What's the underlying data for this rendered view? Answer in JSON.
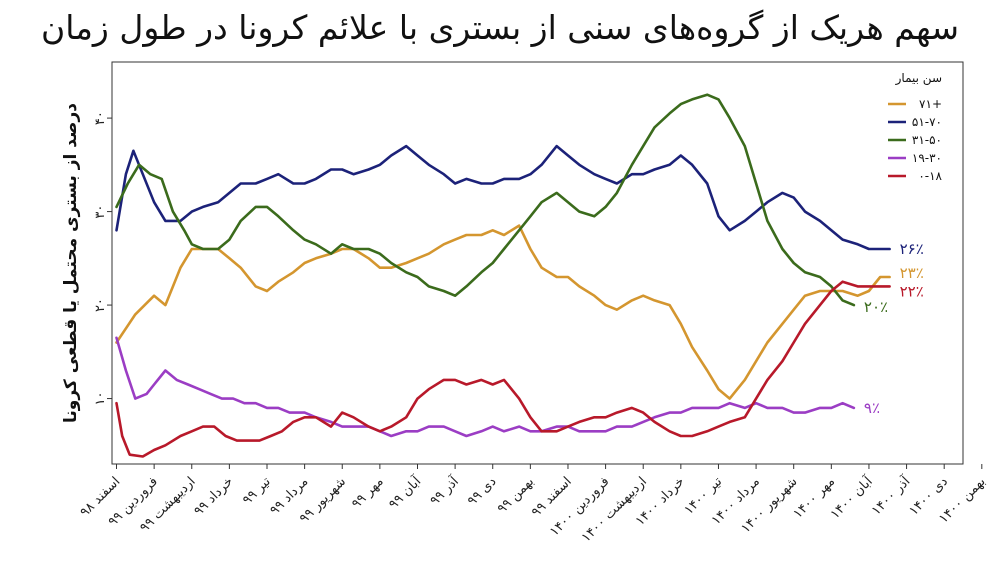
{
  "chart_data": {
    "type": "line",
    "title": "سهم هریک از گروه‌های سنی از بستری با علائم کرونا در طول زمان",
    "ylabel": "درصد از بستری محتمل یا قطعی کرونا",
    "ylim": [
      3,
      46
    ],
    "yticks": [
      10,
      20,
      30,
      40
    ],
    "ytick_labels": [
      "۱۰",
      "۲۰",
      "۳۰",
      "۴۰"
    ],
    "x_range": [
      -0.12,
      22.5
    ],
    "grid": false,
    "legend_position": "top-right",
    "legend_title": "سن بیمار",
    "categories": [
      "اسفند ۹۸",
      "فروردین ۹۹",
      "اردیبهشت ۹۹",
      "خرداد ۹۹",
      "تیر ۹۹",
      "مرداد ۹۹",
      "شهریور ۹۹",
      "مهر ۹۹",
      "آبان ۹۹",
      "آذر ۹۹",
      "دی ۹۹",
      "بهمن ۹۹",
      "اسفند ۹۹",
      "فروردین ۱۴۰۰",
      "اردیبهشت ۱۴۰۰",
      "خرداد ۱۴۰۰",
      "تیر ۱۴۰۰",
      "مرداد ۱۴۰۰",
      "شهریور ۱۴۰۰",
      "مهر ۱۴۰۰",
      "آبان ۱۴۰۰",
      "آذر ۱۴۰۰",
      "دی ۱۴۰۰",
      "بهمن ۱۴۰۰"
    ],
    "series": [
      {
        "name": "۷۱+",
        "color": "#d4962f",
        "end_label": "۲۳٪",
        "points": [
          [
            0,
            16
          ],
          [
            0.5,
            19
          ],
          [
            1,
            21
          ],
          [
            1.3,
            20
          ],
          [
            1.7,
            24
          ],
          [
            2,
            26
          ],
          [
            2.3,
            26
          ],
          [
            2.7,
            26
          ],
          [
            3,
            25
          ],
          [
            3.3,
            24
          ],
          [
            3.7,
            22
          ],
          [
            4,
            21.5
          ],
          [
            4.3,
            22.5
          ],
          [
            4.7,
            23.5
          ],
          [
            5,
            24.5
          ],
          [
            5.3,
            25
          ],
          [
            5.7,
            25.5
          ],
          [
            6,
            26
          ],
          [
            6.3,
            26
          ],
          [
            6.7,
            25
          ],
          [
            7,
            24
          ],
          [
            7.3,
            24
          ],
          [
            7.7,
            24.5
          ],
          [
            8,
            25
          ],
          [
            8.3,
            25.5
          ],
          [
            8.7,
            26.5
          ],
          [
            9,
            27
          ],
          [
            9.3,
            27.5
          ],
          [
            9.7,
            27.5
          ],
          [
            10,
            28
          ],
          [
            10.3,
            27.5
          ],
          [
            10.7,
            28.5
          ],
          [
            11,
            26
          ],
          [
            11.3,
            24
          ],
          [
            11.7,
            23
          ],
          [
            12,
            23
          ],
          [
            12.3,
            22
          ],
          [
            12.7,
            21
          ],
          [
            13,
            20
          ],
          [
            13.3,
            19.5
          ],
          [
            13.7,
            20.5
          ],
          [
            14,
            21
          ],
          [
            14.3,
            20.5
          ],
          [
            14.7,
            20
          ],
          [
            15,
            18
          ],
          [
            15.3,
            15.5
          ],
          [
            15.7,
            13
          ],
          [
            16,
            11
          ],
          [
            16.3,
            10
          ],
          [
            16.7,
            12
          ],
          [
            17,
            14
          ],
          [
            17.3,
            16
          ],
          [
            17.7,
            18
          ],
          [
            18,
            19.5
          ],
          [
            18.3,
            21
          ],
          [
            18.7,
            21.5
          ],
          [
            19,
            21.5
          ],
          [
            19.3,
            21.5
          ],
          [
            19.7,
            21
          ],
          [
            20,
            21.5
          ],
          [
            20.3,
            23
          ],
          [
            20.55,
            23
          ]
        ]
      },
      {
        "name": "۵۱-۷۰",
        "color": "#1c2279",
        "end_label": "۲۶٪",
        "points": [
          [
            0,
            28
          ],
          [
            0.25,
            34
          ],
          [
            0.45,
            36.5
          ],
          [
            0.7,
            34
          ],
          [
            1,
            31
          ],
          [
            1.3,
            29
          ],
          [
            1.7,
            29
          ],
          [
            2,
            30
          ],
          [
            2.3,
            30.5
          ],
          [
            2.7,
            31
          ],
          [
            3,
            32
          ],
          [
            3.3,
            33
          ],
          [
            3.7,
            33
          ],
          [
            4,
            33.5
          ],
          [
            4.3,
            34
          ],
          [
            4.7,
            33
          ],
          [
            5,
            33
          ],
          [
            5.3,
            33.5
          ],
          [
            5.7,
            34.5
          ],
          [
            6,
            34.5
          ],
          [
            6.3,
            34
          ],
          [
            6.7,
            34.5
          ],
          [
            7,
            35
          ],
          [
            7.3,
            36
          ],
          [
            7.7,
            37
          ],
          [
            8,
            36
          ],
          [
            8.3,
            35
          ],
          [
            8.7,
            34
          ],
          [
            9,
            33
          ],
          [
            9.3,
            33.5
          ],
          [
            9.7,
            33
          ],
          [
            10,
            33
          ],
          [
            10.3,
            33.5
          ],
          [
            10.7,
            33.5
          ],
          [
            11,
            34
          ],
          [
            11.3,
            35
          ],
          [
            11.7,
            37
          ],
          [
            12,
            36
          ],
          [
            12.3,
            35
          ],
          [
            12.7,
            34
          ],
          [
            13,
            33.5
          ],
          [
            13.3,
            33
          ],
          [
            13.7,
            34
          ],
          [
            14,
            34
          ],
          [
            14.3,
            34.5
          ],
          [
            14.7,
            35
          ],
          [
            15,
            36
          ],
          [
            15.3,
            35
          ],
          [
            15.7,
            33
          ],
          [
            16,
            29.5
          ],
          [
            16.3,
            28
          ],
          [
            16.7,
            29
          ],
          [
            17,
            30
          ],
          [
            17.3,
            31
          ],
          [
            17.7,
            32
          ],
          [
            18,
            31.5
          ],
          [
            18.3,
            30
          ],
          [
            18.7,
            29
          ],
          [
            19,
            28
          ],
          [
            19.3,
            27
          ],
          [
            19.7,
            26.5
          ],
          [
            20,
            26
          ],
          [
            20.3,
            26
          ],
          [
            20.55,
            26
          ]
        ]
      },
      {
        "name": "۳۱-۵۰",
        "color": "#3b6b1c",
        "end_label": "۲۰٪",
        "points": [
          [
            0,
            30.5
          ],
          [
            0.3,
            33
          ],
          [
            0.6,
            35
          ],
          [
            0.9,
            34
          ],
          [
            1.2,
            33.5
          ],
          [
            1.5,
            30
          ],
          [
            1.8,
            28
          ],
          [
            2,
            26.5
          ],
          [
            2.3,
            26
          ],
          [
            2.7,
            26
          ],
          [
            3,
            27
          ],
          [
            3.3,
            29
          ],
          [
            3.7,
            30.5
          ],
          [
            4,
            30.5
          ],
          [
            4.3,
            29.5
          ],
          [
            4.7,
            28
          ],
          [
            5,
            27
          ],
          [
            5.3,
            26.5
          ],
          [
            5.7,
            25.5
          ],
          [
            6,
            26.5
          ],
          [
            6.3,
            26
          ],
          [
            6.7,
            26
          ],
          [
            7,
            25.5
          ],
          [
            7.3,
            24.5
          ],
          [
            7.7,
            23.5
          ],
          [
            8,
            23
          ],
          [
            8.3,
            22
          ],
          [
            8.7,
            21.5
          ],
          [
            9,
            21
          ],
          [
            9.3,
            22
          ],
          [
            9.7,
            23.5
          ],
          [
            10,
            24.5
          ],
          [
            10.3,
            26
          ],
          [
            10.7,
            28
          ],
          [
            11,
            29.5
          ],
          [
            11.3,
            31
          ],
          [
            11.7,
            32
          ],
          [
            12,
            31
          ],
          [
            12.3,
            30
          ],
          [
            12.7,
            29.5
          ],
          [
            13,
            30.5
          ],
          [
            13.3,
            32
          ],
          [
            13.7,
            35
          ],
          [
            14,
            37
          ],
          [
            14.3,
            39
          ],
          [
            14.7,
            40.5
          ],
          [
            15,
            41.5
          ],
          [
            15.3,
            42
          ],
          [
            15.7,
            42.5
          ],
          [
            16,
            42
          ],
          [
            16.3,
            40
          ],
          [
            16.7,
            37
          ],
          [
            17,
            33
          ],
          [
            17.3,
            29
          ],
          [
            17.7,
            26
          ],
          [
            18,
            24.5
          ],
          [
            18.3,
            23.5
          ],
          [
            18.7,
            23
          ],
          [
            19,
            22
          ],
          [
            19.3,
            20.5
          ],
          [
            19.6,
            20
          ]
        ]
      },
      {
        "name": "۱۹-۳۰",
        "color": "#9b3dc4",
        "end_label": "۹٪",
        "points": [
          [
            0,
            16.5
          ],
          [
            0.25,
            13
          ],
          [
            0.5,
            10
          ],
          [
            0.8,
            10.5
          ],
          [
            1,
            11.5
          ],
          [
            1.3,
            13
          ],
          [
            1.6,
            12
          ],
          [
            1.9,
            11.5
          ],
          [
            2.2,
            11
          ],
          [
            2.5,
            10.5
          ],
          [
            2.8,
            10
          ],
          [
            3.1,
            10
          ],
          [
            3.4,
            9.5
          ],
          [
            3.7,
            9.5
          ],
          [
            4,
            9
          ],
          [
            4.3,
            9
          ],
          [
            4.6,
            8.5
          ],
          [
            5,
            8.5
          ],
          [
            5.3,
            8
          ],
          [
            5.7,
            7.5
          ],
          [
            6,
            7
          ],
          [
            6.3,
            7
          ],
          [
            6.7,
            7
          ],
          [
            7,
            6.5
          ],
          [
            7.3,
            6
          ],
          [
            7.7,
            6.5
          ],
          [
            8,
            6.5
          ],
          [
            8.3,
            7
          ],
          [
            8.7,
            7
          ],
          [
            9,
            6.5
          ],
          [
            9.3,
            6
          ],
          [
            9.7,
            6.5
          ],
          [
            10,
            7
          ],
          [
            10.3,
            6.5
          ],
          [
            10.7,
            7
          ],
          [
            11,
            6.5
          ],
          [
            11.3,
            6.5
          ],
          [
            11.7,
            7
          ],
          [
            12,
            7
          ],
          [
            12.3,
            6.5
          ],
          [
            12.7,
            6.5
          ],
          [
            13,
            6.5
          ],
          [
            13.3,
            7
          ],
          [
            13.7,
            7
          ],
          [
            14,
            7.5
          ],
          [
            14.3,
            8
          ],
          [
            14.7,
            8.5
          ],
          [
            15,
            8.5
          ],
          [
            15.3,
            9
          ],
          [
            15.7,
            9
          ],
          [
            16,
            9
          ],
          [
            16.3,
            9.5
          ],
          [
            16.7,
            9
          ],
          [
            17,
            9.5
          ],
          [
            17.3,
            9
          ],
          [
            17.7,
            9
          ],
          [
            18,
            8.5
          ],
          [
            18.3,
            8.5
          ],
          [
            18.7,
            9
          ],
          [
            19,
            9
          ],
          [
            19.3,
            9.5
          ],
          [
            19.6,
            9
          ]
        ]
      },
      {
        "name": "۰-۱۸",
        "color": "#b8192a",
        "end_label": "۲۲٪",
        "points": [
          [
            0,
            9.5
          ],
          [
            0.15,
            6
          ],
          [
            0.35,
            4
          ],
          [
            0.7,
            3.8
          ],
          [
            1,
            4.5
          ],
          [
            1.3,
            5
          ],
          [
            1.7,
            6
          ],
          [
            2,
            6.5
          ],
          [
            2.3,
            7
          ],
          [
            2.6,
            7
          ],
          [
            2.9,
            6
          ],
          [
            3.2,
            5.5
          ],
          [
            3.5,
            5.5
          ],
          [
            3.8,
            5.5
          ],
          [
            4.1,
            6
          ],
          [
            4.4,
            6.5
          ],
          [
            4.7,
            7.5
          ],
          [
            5,
            8
          ],
          [
            5.3,
            8
          ],
          [
            5.7,
            7
          ],
          [
            6,
            8.5
          ],
          [
            6.3,
            8
          ],
          [
            6.7,
            7
          ],
          [
            7,
            6.5
          ],
          [
            7.3,
            7
          ],
          [
            7.7,
            8
          ],
          [
            8,
            10
          ],
          [
            8.3,
            11
          ],
          [
            8.7,
            12
          ],
          [
            9,
            12
          ],
          [
            9.3,
            11.5
          ],
          [
            9.7,
            12
          ],
          [
            10,
            11.5
          ],
          [
            10.3,
            12
          ],
          [
            10.7,
            10
          ],
          [
            11,
            8
          ],
          [
            11.3,
            6.5
          ],
          [
            11.7,
            6.5
          ],
          [
            12,
            7
          ],
          [
            12.3,
            7.5
          ],
          [
            12.7,
            8
          ],
          [
            13,
            8
          ],
          [
            13.3,
            8.5
          ],
          [
            13.7,
            9
          ],
          [
            14,
            8.5
          ],
          [
            14.3,
            7.5
          ],
          [
            14.7,
            6.5
          ],
          [
            15,
            6
          ],
          [
            15.3,
            6
          ],
          [
            15.7,
            6.5
          ],
          [
            16,
            7
          ],
          [
            16.3,
            7.5
          ],
          [
            16.7,
            8
          ],
          [
            17,
            10
          ],
          [
            17.3,
            12
          ],
          [
            17.7,
            14
          ],
          [
            18,
            16
          ],
          [
            18.3,
            18
          ],
          [
            18.7,
            20
          ],
          [
            19,
            21.5
          ],
          [
            19.3,
            22.5
          ],
          [
            19.7,
            22
          ],
          [
            20,
            22
          ],
          [
            20.3,
            22
          ],
          [
            20.55,
            22
          ]
        ]
      }
    ]
  }
}
